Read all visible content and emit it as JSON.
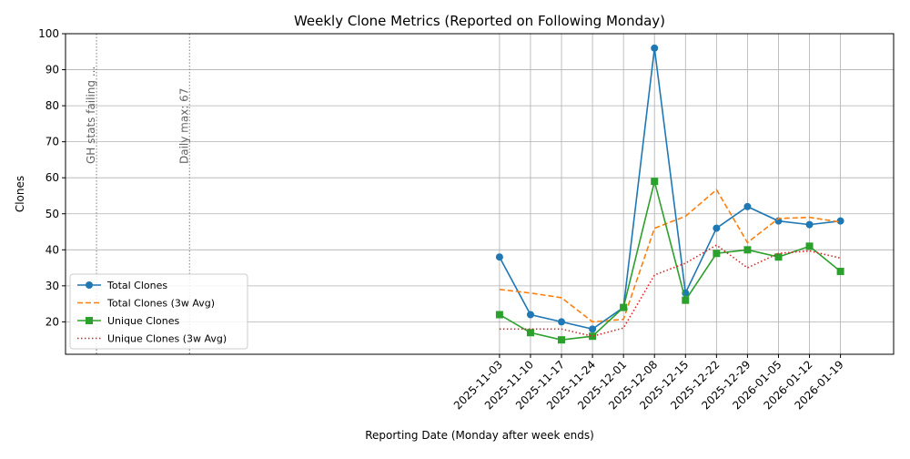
{
  "chart_data": {
    "type": "line",
    "title": "Weekly Clone Metrics (Reported on Following Monday)",
    "xlabel": "Reporting Date (Monday after week ends)",
    "ylabel": "Clones",
    "x_axis_type": "date",
    "x": [
      "2025-11-03",
      "2025-11-10",
      "2025-11-17",
      "2025-11-24",
      "2025-12-01",
      "2025-12-08",
      "2025-12-15",
      "2025-12-22",
      "2025-12-29",
      "2026-01-05",
      "2026-01-12",
      "2026-01-19"
    ],
    "xlim": [
      "2025-07-28",
      "2026-01-31"
    ],
    "ylim": [
      11,
      100
    ],
    "yticks": [
      20,
      30,
      40,
      50,
      60,
      70,
      80,
      90,
      100
    ],
    "grid": true,
    "legend_position": "lower-left",
    "series": [
      {
        "name": "Total Clones",
        "style": "solid",
        "marker": "circle",
        "color": "#1f77b4",
        "values": [
          38,
          22,
          20,
          18,
          24,
          96,
          28,
          46,
          52,
          48,
          47,
          48
        ]
      },
      {
        "name": "Total Clones (3w Avg)",
        "style": "dashed",
        "marker": "none",
        "color": "#ff7f0e",
        "values": [
          29,
          28,
          26.7,
          20,
          20.7,
          46,
          49.3,
          56.7,
          42,
          48.7,
          49,
          47.7
        ]
      },
      {
        "name": "Unique Clones",
        "style": "solid",
        "marker": "square",
        "color": "#2ca02c",
        "values": [
          22,
          17,
          15,
          16,
          24,
          59,
          26,
          39,
          40,
          38,
          41,
          34
        ]
      },
      {
        "name": "Unique Clones (3w Avg)",
        "style": "dotted",
        "marker": "none",
        "color": "#d62728",
        "values": [
          18,
          18,
          18,
          16,
          18.3,
          33,
          36.3,
          41.3,
          35,
          39,
          39.7,
          37.7
        ]
      }
    ],
    "annotations": [
      {
        "x": "2025-08-04",
        "text": "GH stats failing ..."
      },
      {
        "x": "2025-08-25",
        "text": "Daily max: 67"
      }
    ]
  }
}
